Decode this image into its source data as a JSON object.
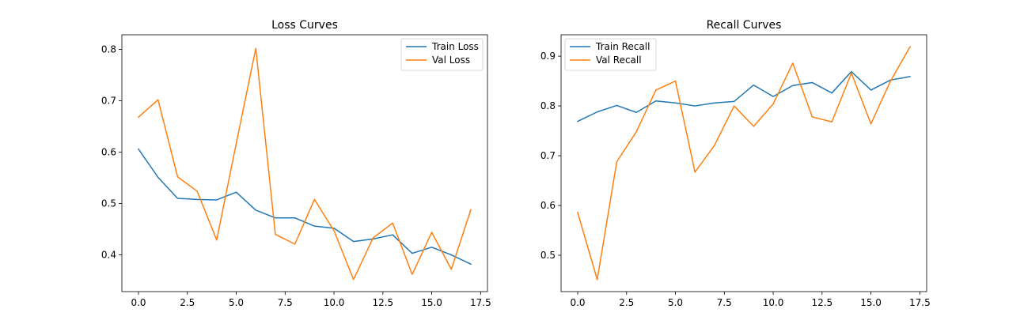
{
  "colors": {
    "train": "#1f77b4",
    "val": "#ff7f0e",
    "axes": "#000000",
    "background": "#ffffff"
  },
  "chart_data": [
    {
      "type": "line",
      "title": "Loss Curves",
      "xlabel": "",
      "ylabel": "",
      "xlim": [
        -0.85,
        17.85
      ],
      "ylim": [
        0.3285,
        0.8285
      ],
      "xticks": [
        0,
        2.5,
        5,
        7.5,
        10,
        12.5,
        15,
        17.5
      ],
      "xtick_labels": [
        "0.0",
        "2.5",
        "5.0",
        "7.5",
        "10.0",
        "12.5",
        "15.0",
        "17.5"
      ],
      "yticks": [
        0.4,
        0.5,
        0.6,
        0.7,
        0.8
      ],
      "ytick_labels": [
        "0.4",
        "0.5",
        "0.6",
        "0.7",
        "0.8"
      ],
      "grid": false,
      "legend": "top-right",
      "x": [
        0,
        1,
        2,
        3,
        4,
        5,
        6,
        7,
        8,
        9,
        10,
        11,
        12,
        13,
        14,
        15,
        16,
        17
      ],
      "series": [
        {
          "name": "Train Loss",
          "color_key": "train",
          "values": [
            0.606,
            0.551,
            0.51,
            0.508,
            0.507,
            0.522,
            0.487,
            0.472,
            0.472,
            0.456,
            0.452,
            0.426,
            0.431,
            0.439,
            0.403,
            0.415,
            0.4,
            0.382
          ]
        },
        {
          "name": "Val Loss",
          "color_key": "val",
          "values": [
            0.668,
            0.702,
            0.552,
            0.524,
            0.429,
            0.617,
            0.802,
            0.44,
            0.421,
            0.508,
            0.447,
            0.352,
            0.433,
            0.462,
            0.362,
            0.444,
            0.372,
            0.488
          ]
        }
      ]
    },
    {
      "type": "line",
      "title": "Recall Curves",
      "xlabel": "",
      "ylabel": "",
      "xlim": [
        -0.85,
        17.85
      ],
      "ylim": [
        0.427,
        0.943
      ],
      "xticks": [
        0,
        2.5,
        5,
        7.5,
        10,
        12.5,
        15,
        17.5
      ],
      "xtick_labels": [
        "0.0",
        "2.5",
        "5.0",
        "7.5",
        "10.0",
        "12.5",
        "15.0",
        "17.5"
      ],
      "yticks": [
        0.5,
        0.6,
        0.7,
        0.8,
        0.9
      ],
      "ytick_labels": [
        "0.5",
        "0.6",
        "0.7",
        "0.8",
        "0.9"
      ],
      "grid": false,
      "legend": "top-left",
      "x": [
        0,
        1,
        2,
        3,
        4,
        5,
        6,
        7,
        8,
        9,
        10,
        11,
        12,
        13,
        14,
        15,
        16,
        17
      ],
      "series": [
        {
          "name": "Train Recall",
          "color_key": "train",
          "values": [
            0.769,
            0.788,
            0.801,
            0.787,
            0.81,
            0.806,
            0.8,
            0.806,
            0.809,
            0.842,
            0.819,
            0.841,
            0.847,
            0.826,
            0.869,
            0.832,
            0.852,
            0.859
          ]
        },
        {
          "name": "Val Recall",
          "color_key": "val",
          "values": [
            0.586,
            0.451,
            0.688,
            0.748,
            0.832,
            0.85,
            0.667,
            0.721,
            0.8,
            0.759,
            0.804,
            0.886,
            0.778,
            0.768,
            0.866,
            0.764,
            0.85,
            0.919
          ]
        }
      ]
    }
  ]
}
